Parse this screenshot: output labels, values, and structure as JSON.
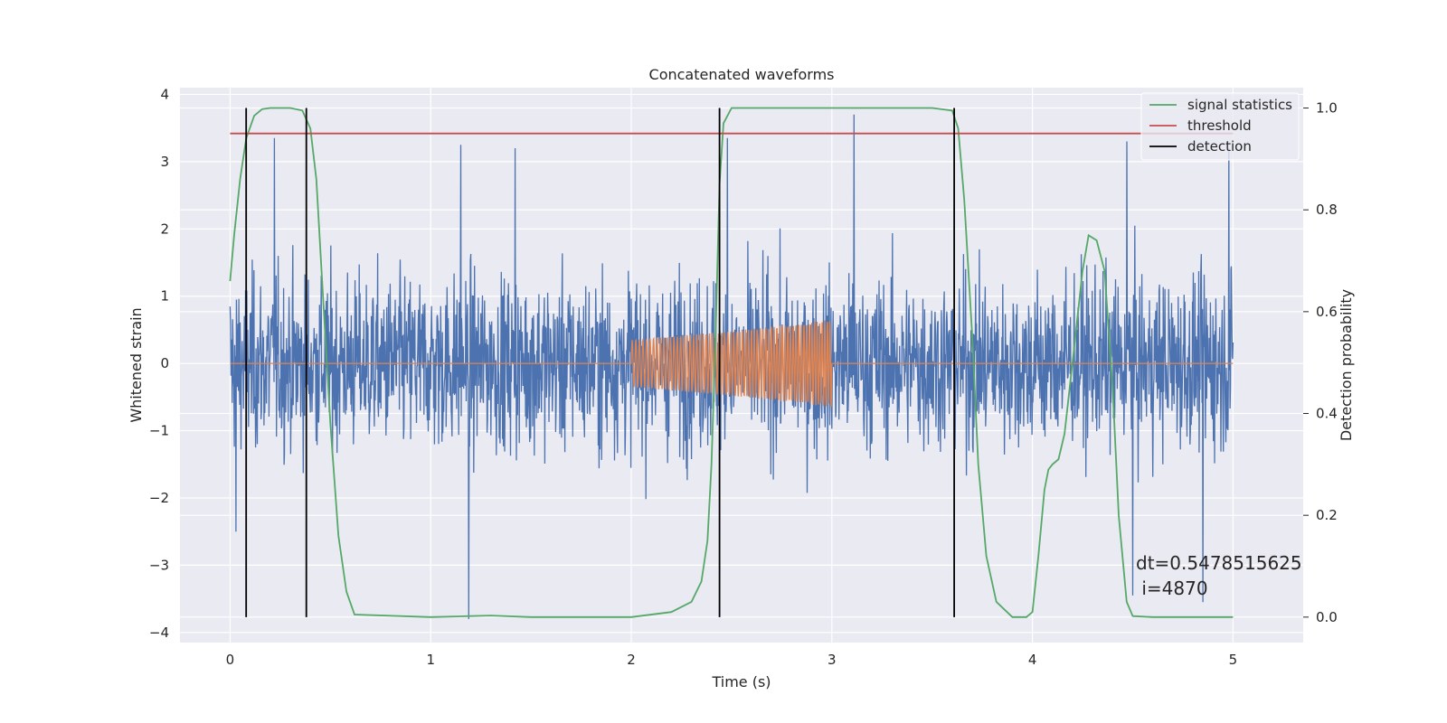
{
  "chart_data": {
    "type": "line",
    "title": "Concatenated waveforms",
    "xlabel": "Time (s)",
    "ylabel": "Whitened strain",
    "y2label": "Detection probability",
    "xlim": [
      -0.25,
      5.35
    ],
    "ylim": [
      -4.15,
      4.1
    ],
    "y2lim": [
      -0.05,
      1.04
    ],
    "x_ticks": [
      0,
      1,
      2,
      3,
      4,
      5
    ],
    "y_ticks": [
      -4,
      -3,
      -2,
      -1,
      0,
      1,
      2,
      3,
      4
    ],
    "y2_ticks": [
      0.0,
      0.2,
      0.4,
      0.6,
      0.8,
      1.0
    ],
    "y2_tick_labels": [
      "0.0",
      "0.2",
      "0.4",
      "0.6",
      "0.8",
      "1.0"
    ],
    "grid": true,
    "legend_position": "top-right",
    "colors": {
      "background": "#eaeaf2",
      "grid": "#ffffff",
      "strain": "#4c72b0",
      "template": "#dd8452",
      "signal_statistics": "#55a868",
      "threshold": "#c44e52",
      "detection": "#000000"
    },
    "series": [
      {
        "name": "",
        "role": "noisy whitened strain",
        "axis": "left",
        "x_range": [
          0,
          5
        ],
        "typical_envelope": [
          -2.0,
          2.3
        ],
        "peaks": [
          {
            "x": 0.22,
            "y": 3.35
          },
          {
            "x": 1.15,
            "y": 3.25
          },
          {
            "x": 1.42,
            "y": 3.2
          },
          {
            "x": 2.48,
            "y": 3.35
          },
          {
            "x": 3.11,
            "y": 3.7
          },
          {
            "x": 4.47,
            "y": 3.3
          },
          {
            "x": 4.98,
            "y": 3.2
          },
          {
            "x": 1.19,
            "y": -3.8
          },
          {
            "x": 4.85,
            "y": -3.55
          },
          {
            "x": 4.5,
            "y": -3.45
          },
          {
            "x": 0.03,
            "y": -2.5
          }
        ]
      },
      {
        "name": "",
        "role": "injected waveform",
        "axis": "left",
        "x": [
          0,
          2.0,
          2.0,
          2.5,
          3.0,
          3.0,
          5.0
        ],
        "amplitude": [
          0,
          0,
          0.35,
          0.48,
          0.65,
          0,
          0
        ]
      },
      {
        "name": "signal statistics",
        "axis": "right",
        "x": [
          0,
          0.02,
          0.05,
          0.08,
          0.12,
          0.16,
          0.2,
          0.3,
          0.36,
          0.4,
          0.43,
          0.46,
          0.5,
          0.54,
          0.58,
          0.62,
          1.0,
          1.2,
          1.3,
          1.5,
          2.0,
          2.2,
          2.3,
          2.35,
          2.38,
          2.4,
          2.42,
          2.44,
          2.46,
          2.5,
          3.0,
          3.5,
          3.6,
          3.63,
          3.66,
          3.7,
          3.73,
          3.77,
          3.82,
          3.9,
          3.97,
          4.0,
          4.03,
          4.06,
          4.08,
          4.1,
          4.13,
          4.16,
          4.2,
          4.25,
          4.28,
          4.32,
          4.36,
          4.4,
          4.43,
          4.47,
          4.5,
          4.6,
          5.0
        ],
        "y": [
          0.66,
          0.75,
          0.86,
          0.94,
          0.985,
          0.998,
          1.0,
          1.0,
          0.995,
          0.96,
          0.86,
          0.65,
          0.38,
          0.16,
          0.05,
          0.005,
          0.0,
          0.002,
          0.003,
          0.0,
          0.0,
          0.01,
          0.03,
          0.07,
          0.15,
          0.3,
          0.55,
          0.85,
          0.97,
          1.0,
          1.0,
          1.0,
          0.995,
          0.96,
          0.82,
          0.55,
          0.3,
          0.12,
          0.03,
          0.0,
          0.0,
          0.01,
          0.12,
          0.25,
          0.29,
          0.3,
          0.31,
          0.36,
          0.5,
          0.68,
          0.75,
          0.74,
          0.68,
          0.45,
          0.2,
          0.03,
          0.002,
          0.0,
          0.0
        ]
      },
      {
        "name": "threshold",
        "axis": "right",
        "x": [
          0,
          5
        ],
        "y": [
          0.95,
          0.95
        ]
      },
      {
        "name": "detection",
        "axis": "right",
        "vlines": [
          0.08,
          0.38,
          2.44,
          3.61
        ],
        "ymin": 0.0,
        "ymax": 1.0
      }
    ],
    "legend": [
      "signal statistics",
      "threshold",
      "detection"
    ],
    "annotation": {
      "line1": "dt=0.5478515625",
      "line2": " i=4870"
    }
  }
}
